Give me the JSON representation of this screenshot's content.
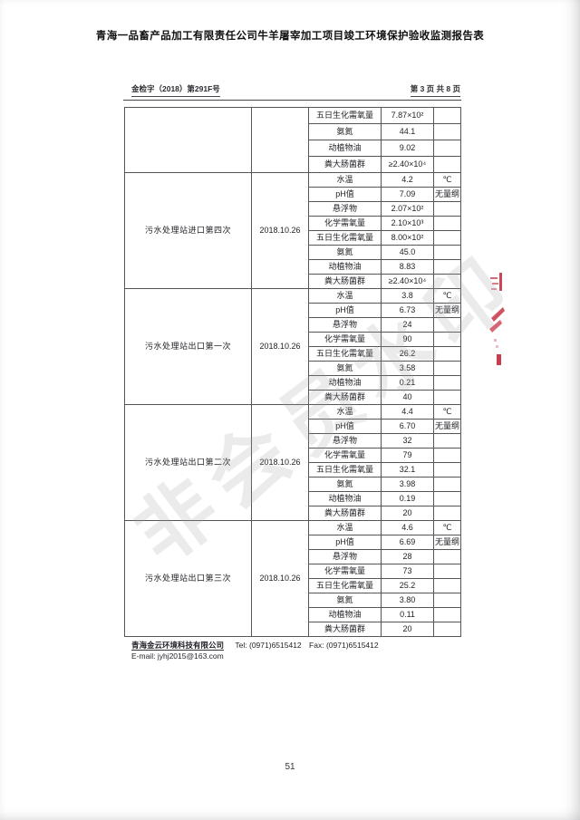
{
  "page": {
    "title": "青海一品畜产品加工有限责任公司牛羊屠宰加工项目竣工环境保护验收监测报告表",
    "doc_no": "金检字（2018）第291F号",
    "page_info": "第 3 页 共 8 页",
    "page_number": "51",
    "watermark": "非会员水印"
  },
  "colors": {
    "seal_red": "#c2273b",
    "watermark_gray": "#a0a0a6"
  },
  "table": {
    "sections": [
      {
        "sample": "",
        "date": "",
        "partial": true,
        "rows": [
          {
            "param": "五日生化需氧量",
            "value": "7.87×10²",
            "unit": ""
          },
          {
            "param": "氨氮",
            "value": "44.1",
            "unit": ""
          },
          {
            "param": "动植物油",
            "value": "9.02",
            "unit": ""
          },
          {
            "param": "粪大肠菌群",
            "value": "≥2.40×10⁴",
            "unit": ""
          }
        ]
      },
      {
        "sample": "污水处理站进口第四次",
        "date": "2018.10.26",
        "partial": false,
        "rows": [
          {
            "param": "水温",
            "value": "4.2",
            "unit": "℃"
          },
          {
            "param": "pH值",
            "value": "7.09",
            "unit": "无量纲"
          },
          {
            "param": "悬浮物",
            "value": "2.07×10²",
            "unit": ""
          },
          {
            "param": "化学需氧量",
            "value": "2.10×10³",
            "unit": ""
          },
          {
            "param": "五日生化需氧量",
            "value": "8.00×10²",
            "unit": ""
          },
          {
            "param": "氨氮",
            "value": "45.0",
            "unit": ""
          },
          {
            "param": "动植物油",
            "value": "8.83",
            "unit": ""
          },
          {
            "param": "粪大肠菌群",
            "value": "≥2.40×10⁴",
            "unit": ""
          }
        ]
      },
      {
        "sample": "污水处理站出口第一次",
        "date": "2018.10.26",
        "partial": false,
        "rows": [
          {
            "param": "水温",
            "value": "3.8",
            "unit": "℃"
          },
          {
            "param": "pH值",
            "value": "6.73",
            "unit": "无量纲"
          },
          {
            "param": "悬浮物",
            "value": "24",
            "unit": ""
          },
          {
            "param": "化学需氧量",
            "value": "90",
            "unit": ""
          },
          {
            "param": "五日生化需氧量",
            "value": "26.2",
            "unit": ""
          },
          {
            "param": "氨氮",
            "value": "3.58",
            "unit": ""
          },
          {
            "param": "动植物油",
            "value": "0.21",
            "unit": ""
          },
          {
            "param": "粪大肠菌群",
            "value": "40",
            "unit": ""
          }
        ]
      },
      {
        "sample": "污水处理站出口第二次",
        "date": "2018.10.26",
        "partial": false,
        "rows": [
          {
            "param": "水温",
            "value": "4.4",
            "unit": "℃"
          },
          {
            "param": "pH值",
            "value": "6.70",
            "unit": "无量纲"
          },
          {
            "param": "悬浮物",
            "value": "32",
            "unit": ""
          },
          {
            "param": "化学需氧量",
            "value": "79",
            "unit": ""
          },
          {
            "param": "五日生化需氧量",
            "value": "32.1",
            "unit": ""
          },
          {
            "param": "氨氮",
            "value": "3.98",
            "unit": ""
          },
          {
            "param": "动植物油",
            "value": "0.19",
            "unit": ""
          },
          {
            "param": "粪大肠菌群",
            "value": "20",
            "unit": ""
          }
        ]
      },
      {
        "sample": "污水处理站出口第三次",
        "date": "2018.10.26",
        "partial": false,
        "rows": [
          {
            "param": "水温",
            "value": "4.6",
            "unit": "℃"
          },
          {
            "param": "pH值",
            "value": "6.69",
            "unit": "无量纲"
          },
          {
            "param": "悬浮物",
            "value": "28",
            "unit": ""
          },
          {
            "param": "化学需氧量",
            "value": "73",
            "unit": ""
          },
          {
            "param": "五日生化需氧量",
            "value": "25.2",
            "unit": ""
          },
          {
            "param": "氨氮",
            "value": "3.80",
            "unit": ""
          },
          {
            "param": "动植物油",
            "value": "0.11",
            "unit": ""
          },
          {
            "param": "粪大肠菌群",
            "value": "20",
            "unit": ""
          }
        ]
      }
    ]
  },
  "footer": {
    "company": "青海金云环境科技有限公司",
    "tel_label": "Tel:",
    "tel": "(0971)6515412",
    "fax_label": "Fax:",
    "fax": "(0971)6515412",
    "email_label": "E-mail:",
    "email": "jyhj2015@163.com"
  }
}
